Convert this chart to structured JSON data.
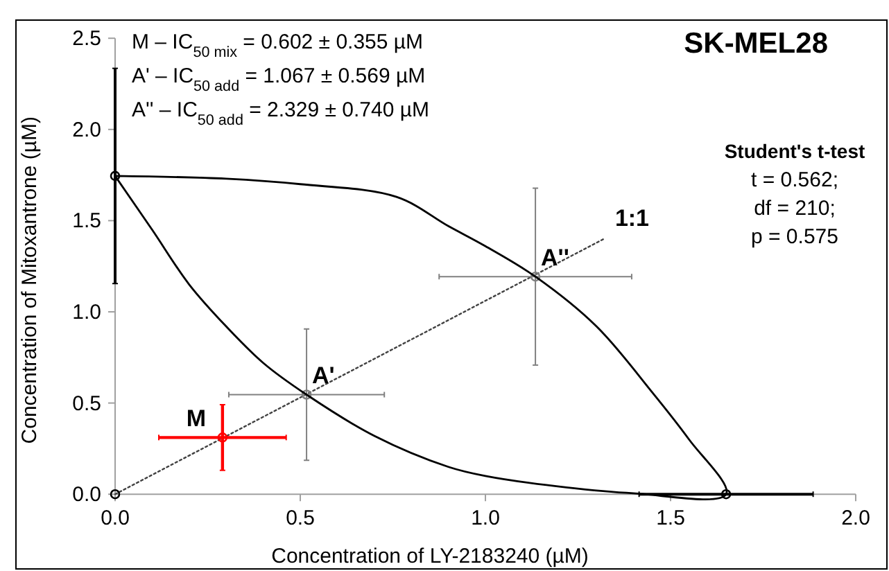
{
  "chart_data": {
    "type": "scatter",
    "title": "SK-MEL28",
    "xlabel": "Concentration of LY-2183240 (µM)",
    "ylabel": "Concentration of Mitoxantrone (µM)",
    "xlim": [
      0,
      2
    ],
    "ylim": [
      0,
      2.5
    ],
    "xticks": [
      {
        "value": 0,
        "label": "0.0"
      },
      {
        "value": 0.5,
        "label": "0.5"
      },
      {
        "value": 1,
        "label": "1.0"
      },
      {
        "value": 1.5,
        "label": "1.5"
      },
      {
        "value": 2,
        "label": "2.0"
      }
    ],
    "yticks": [
      {
        "value": 0,
        "label": "0.0"
      },
      {
        "value": 0.5,
        "label": "0.5"
      },
      {
        "value": 1,
        "label": "1.0"
      },
      {
        "value": 1.5,
        "label": "1.5"
      },
      {
        "value": 2,
        "label": "2.0"
      },
      {
        "value": 2.5,
        "label": "2.5"
      }
    ],
    "grid": false,
    "series": [
      {
        "type": "line",
        "color": "#404040",
        "line_style": "dotted",
        "marker": "none",
        "x": [
          0,
          1.32
        ],
        "values": [
          0,
          1.4
        ]
      },
      {
        "type": "scatter",
        "color": "#000000",
        "x": [
          0,
          0,
          1.65
        ],
        "values": [
          1.745,
          0,
          0
        ],
        "errors": [
          0.59,
          null,
          null
        ],
        "xerrors": [
          null,
          null,
          0.235
        ]
      },
      {
        "name": "M",
        "color": "#ff0000",
        "x": [
          0.29
        ],
        "values": [
          0.311
        ],
        "errors": [
          0.18
        ],
        "xerrors": [
          0.172
        ]
      },
      {
        "name": "A'",
        "color": "#808080",
        "x": [
          0.517
        ],
        "values": [
          0.546
        ],
        "errors": [
          0.36
        ],
        "xerrors": [
          0.21
        ]
      },
      {
        "name": "A''",
        "color": "#808080",
        "x": [
          1.135
        ],
        "values": [
          1.193
        ],
        "errors": [
          0.485
        ],
        "xerrors": [
          0.26
        ]
      }
    ],
    "annotations": [
      "M – IC$_{50 mix}$ = 0.602 ± 0.355 µM",
      "A' – IC$_{50 add}$ = 1.067 ± 0.569 µM",
      "A'' – IC$_{50 add}$ = 2.329 ± 0.740 µM",
      "Student's t-test",
      "t = 0.562;",
      "df = 210;",
      "p = 0.575",
      "1:1"
    ]
  }
}
